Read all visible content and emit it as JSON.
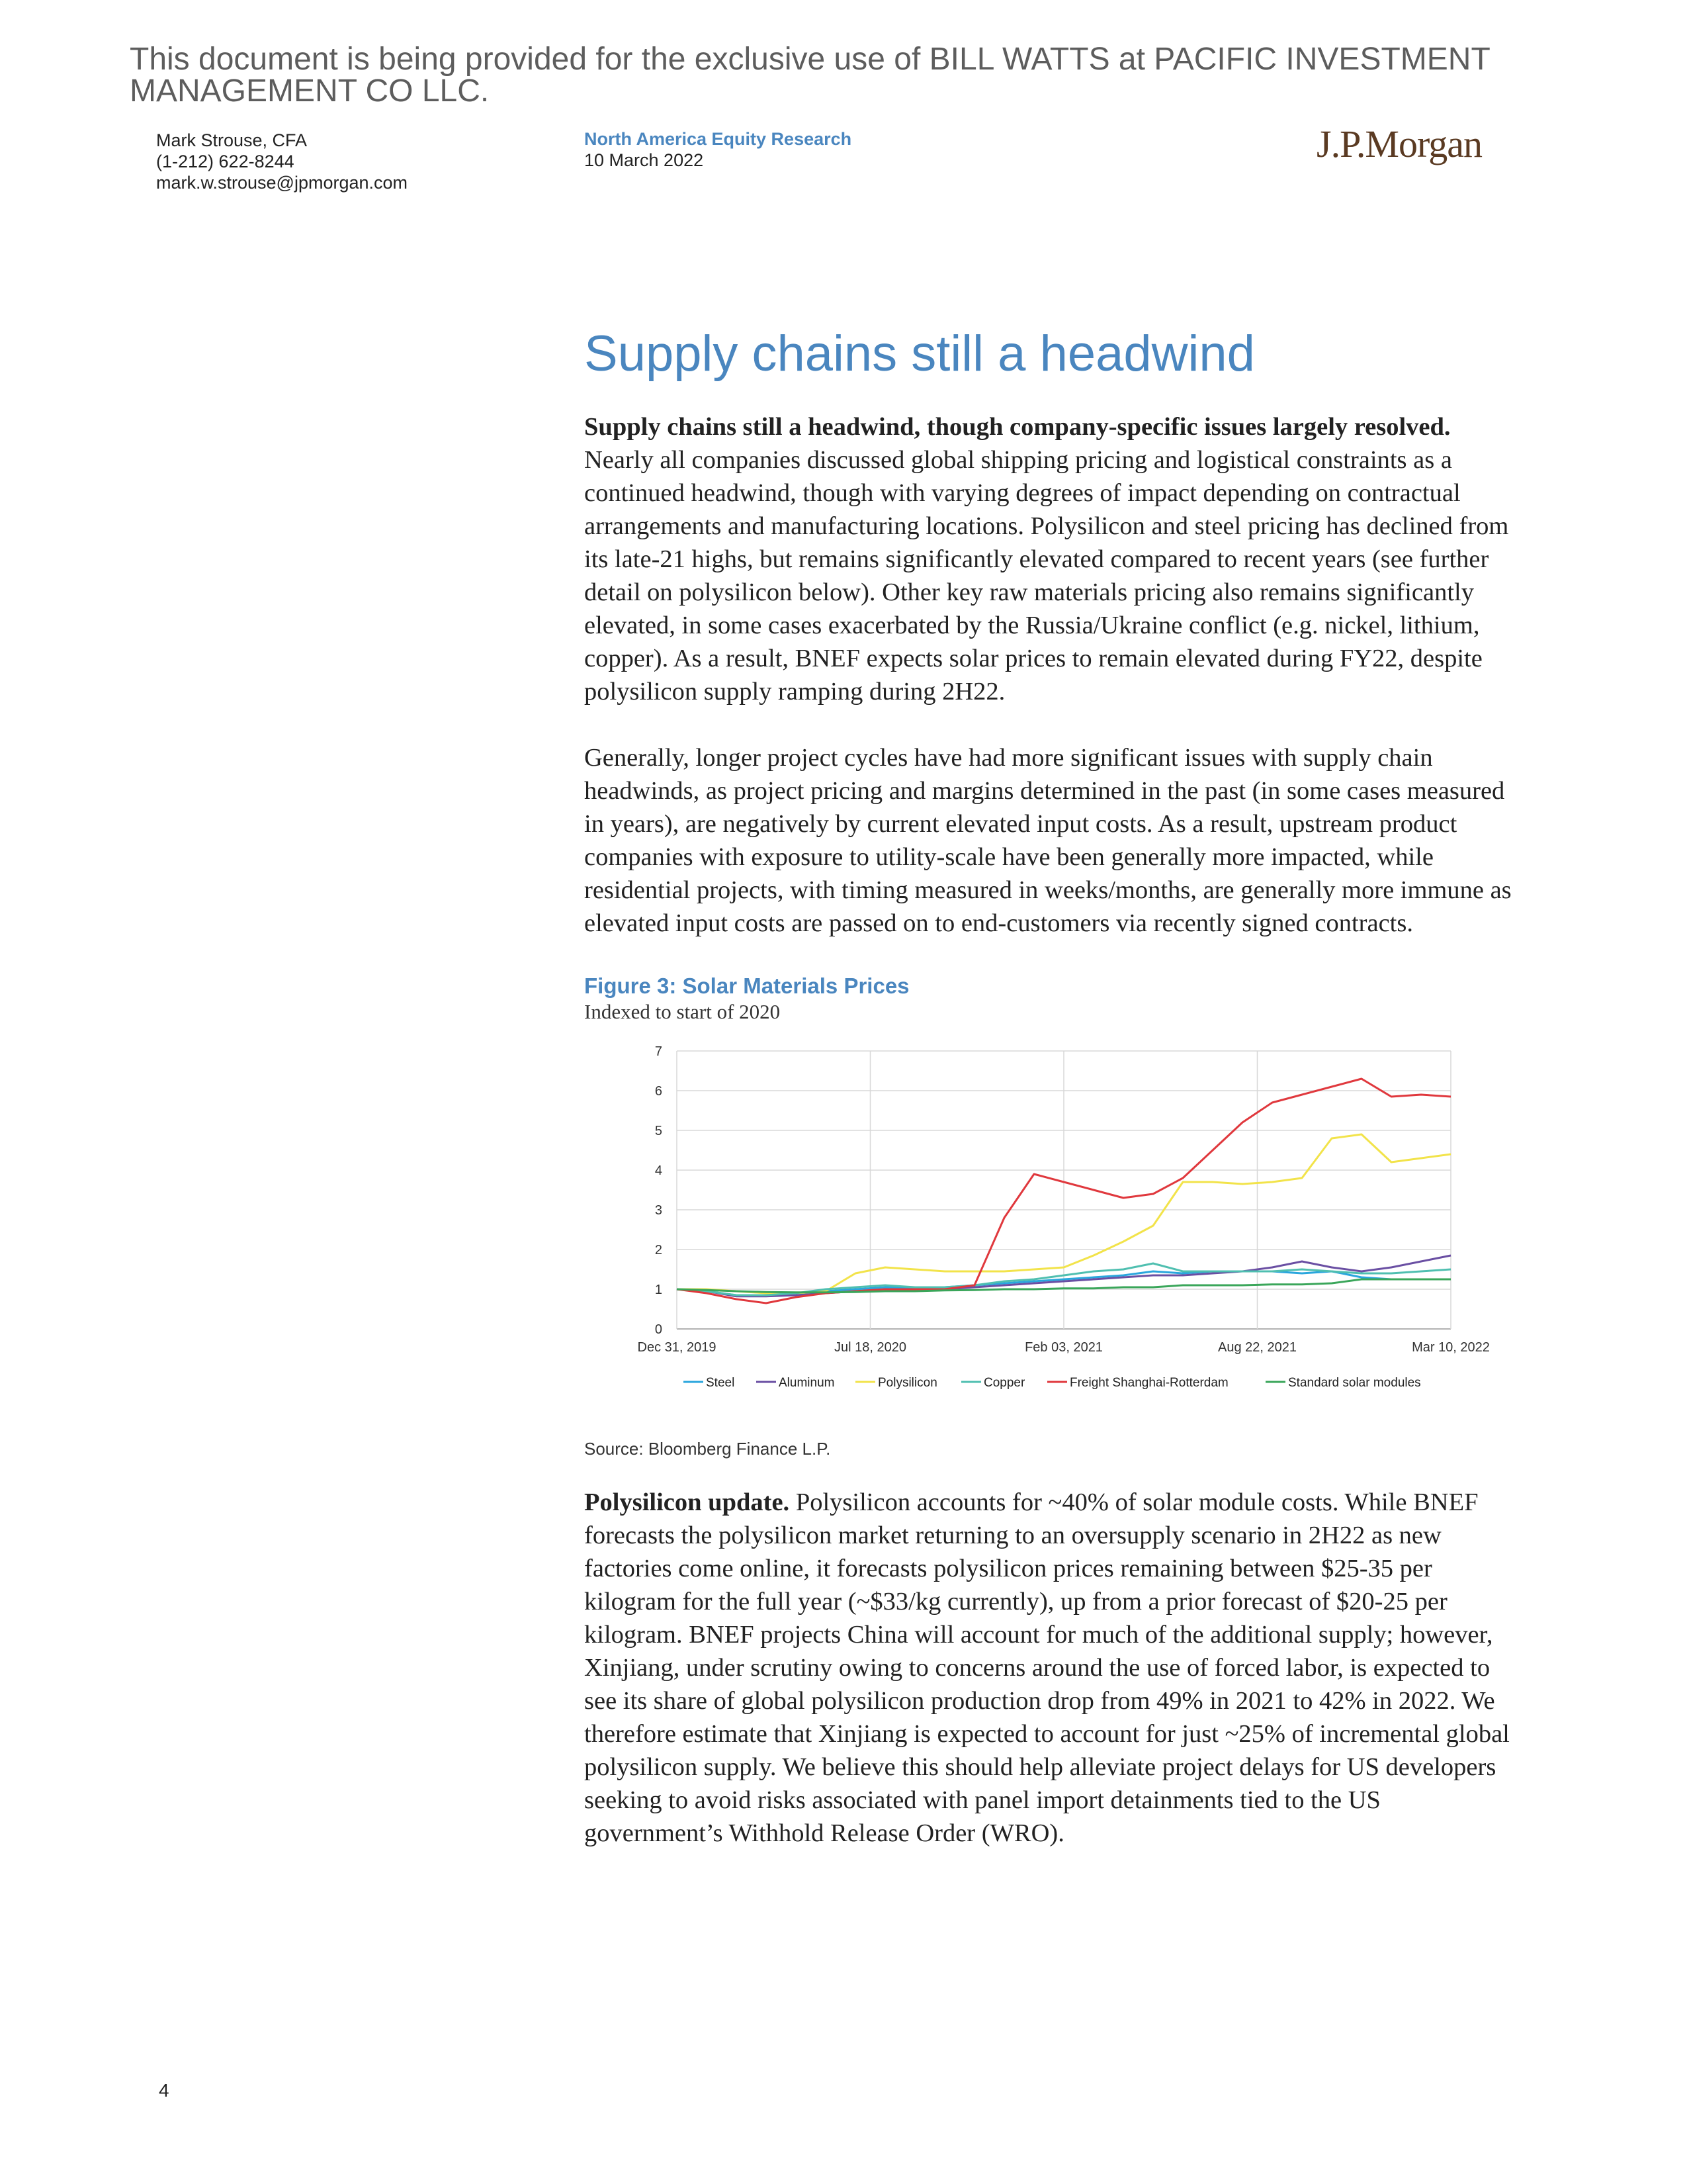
{
  "watermark": "This document is being provided for the exclusive use of BILL WATTS at PACIFIC INVESTMENT MANAGEMENT CO LLC.",
  "header": {
    "author_name": "Mark Strouse, CFA",
    "author_phone": "(1-212) 622-8244",
    "author_email": "mark.w.strouse@jpmorgan.com",
    "research_unit": "North America Equity Research",
    "date": "10 March 2022",
    "logo": "J.P.Morgan"
  },
  "section_title": "Supply chains still a headwind",
  "paragraphs": {
    "p1_lead": "Supply chains still a headwind, though company-specific issues largely resolved.",
    "p1_body": " Nearly all companies discussed global shipping pricing and logistical constraints as a continued headwind, though with varying degrees of impact depending on contractual arrangements and manufacturing locations. Polysilicon and steel pricing has declined from its late-21 highs, but remains significantly elevated compared to recent years (see further detail on polysilicon below). Other key raw materials pricing also remains significantly elevated, in some cases exacerbated by the Russia/Ukraine conflict (e.g. nickel, lithium, copper). As a result, BNEF expects solar prices to remain elevated during FY22, despite polysilicon supply ramping during 2H22.",
    "p2": "Generally, longer project cycles have had more significant issues with supply chain headwinds, as project pricing and margins determined in the past (in some cases measured in years), are negatively by current elevated input costs. As a result, upstream product companies with exposure to utility-scale have been generally more impacted, while residential projects, with timing measured in weeks/months, are generally more immune as elevated input costs are passed on to end-customers via recently signed contracts.",
    "p3_lead": "Polysilicon update.",
    "p3_body": " Polysilicon accounts for ~40% of solar module costs. While BNEF forecasts the polysilicon market returning to an oversupply scenario in 2H22 as new factories come online, it forecasts polysilicon prices remaining between $25-35 per kilogram for the full year (~$33/kg currently), up from a prior forecast of $20-25 per kilogram. BNEF projects China will account for much of the additional supply; however, Xinjiang, under scrutiny owing to concerns around the use of forced labor, is expected to see its share of global polysilicon production drop from 49% in 2021 to 42% in 2022. We therefore estimate that Xinjiang is expected to account for just ~25% of incremental global polysilicon supply. We believe this should help alleviate project delays for US developers seeking to avoid risks associated with panel import detainments tied to the US government’s Withhold Release Order (WRO)."
  },
  "figure": {
    "title": "Figure 3: Solar Materials Prices",
    "subtitle": "Indexed to start of 2020",
    "source": "Source: Bloomberg Finance L.P."
  },
  "chart_data": {
    "type": "line",
    "title": "Figure 3: Solar Materials Prices",
    "subtitle": "Indexed to start of 2020",
    "xlabel": "",
    "ylabel": "",
    "ylim": [
      0,
      7
    ],
    "yticks": [
      "0",
      "1",
      "2",
      "3",
      "4",
      "5",
      "6",
      "7"
    ],
    "xticks": [
      "Dec 31, 2019",
      "Jul 18, 2020",
      "Feb 03, 2021",
      "Aug 22, 2021",
      "Mar 10, 2022"
    ],
    "x": [
      "2020-01",
      "2020-02",
      "2020-03",
      "2020-04",
      "2020-05",
      "2020-06",
      "2020-07",
      "2020-08",
      "2020-09",
      "2020-10",
      "2020-11",
      "2020-12",
      "2021-01",
      "2021-02",
      "2021-03",
      "2021-04",
      "2021-05",
      "2021-06",
      "2021-07",
      "2021-08",
      "2021-09",
      "2021-10",
      "2021-11",
      "2021-12",
      "2022-01",
      "2022-02",
      "2022-03"
    ],
    "grid": true,
    "legend_position": "bottom",
    "series": [
      {
        "name": "Steel",
        "color": "#2aa6dd",
        "values": [
          1.0,
          0.95,
          0.85,
          0.85,
          0.9,
          0.95,
          1.0,
          1.05,
          1.05,
          1.05,
          1.1,
          1.15,
          1.2,
          1.25,
          1.3,
          1.35,
          1.45,
          1.4,
          1.45,
          1.45,
          1.45,
          1.4,
          1.45,
          1.3,
          1.25,
          1.25,
          1.25
        ]
      },
      {
        "name": "Aluminum",
        "color": "#6a4fa3",
        "values": [
          1.0,
          0.95,
          0.82,
          0.82,
          0.85,
          0.9,
          0.95,
          1.0,
          1.0,
          1.0,
          1.05,
          1.1,
          1.15,
          1.2,
          1.25,
          1.3,
          1.35,
          1.35,
          1.4,
          1.45,
          1.55,
          1.7,
          1.55,
          1.45,
          1.55,
          1.7,
          1.85
        ]
      },
      {
        "name": "Polysilicon",
        "color": "#f2e34a",
        "values": [
          1.0,
          1.0,
          0.95,
          0.9,
          0.9,
          0.95,
          1.4,
          1.55,
          1.5,
          1.45,
          1.45,
          1.45,
          1.5,
          1.55,
          1.85,
          2.2,
          2.6,
          3.7,
          3.7,
          3.65,
          3.7,
          3.8,
          4.8,
          4.9,
          4.2,
          4.3,
          4.4
        ]
      },
      {
        "name": "Copper",
        "color": "#4fbfb0",
        "values": [
          1.0,
          0.95,
          0.85,
          0.85,
          0.9,
          1.0,
          1.05,
          1.1,
          1.05,
          1.05,
          1.1,
          1.2,
          1.25,
          1.35,
          1.45,
          1.5,
          1.65,
          1.45,
          1.45,
          1.45,
          1.45,
          1.5,
          1.45,
          1.4,
          1.4,
          1.45,
          1.5
        ]
      },
      {
        "name": "Freight Shanghai-Rotterdam",
        "color": "#e0383d",
        "values": [
          1.0,
          0.9,
          0.75,
          0.65,
          0.8,
          0.9,
          0.95,
          1.0,
          1.0,
          1.0,
          1.1,
          2.8,
          3.9,
          3.7,
          3.5,
          3.3,
          3.4,
          3.8,
          4.5,
          5.2,
          5.7,
          5.9,
          6.1,
          6.3,
          5.85,
          5.9,
          5.85
        ]
      },
      {
        "name": "Standard solar modules",
        "color": "#3aa65a",
        "values": [
          1.0,
          0.98,
          0.95,
          0.93,
          0.92,
          0.92,
          0.93,
          0.95,
          0.95,
          0.97,
          0.98,
          1.0,
          1.0,
          1.02,
          1.02,
          1.05,
          1.05,
          1.1,
          1.1,
          1.1,
          1.12,
          1.12,
          1.15,
          1.25,
          1.25,
          1.25,
          1.25
        ]
      }
    ]
  },
  "page_number": "4"
}
